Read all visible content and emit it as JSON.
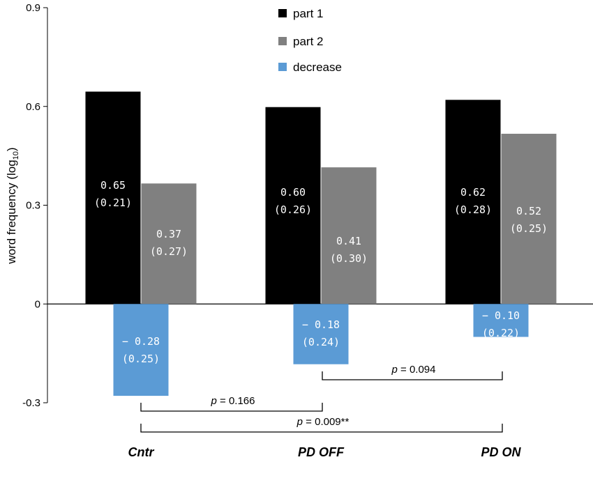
{
  "chart_data": {
    "type": "bar",
    "title": "",
    "xlabel": "",
    "ylabel": "word frequency (log",
    "ylabel_sub": "10",
    "ylabel_end": ")",
    "ylim": [
      -0.3,
      0.9
    ],
    "yticks": [
      {
        "value": -0.3,
        "label": "-0.3"
      },
      {
        "value": 0,
        "label": "0"
      },
      {
        "value": 0.3,
        "label": "0.3"
      },
      {
        "value": 0.6,
        "label": "0.6"
      },
      {
        "value": 0.9,
        "label": "0.9"
      }
    ],
    "categories": [
      "Cntr",
      "PD OFF",
      "PD ON"
    ],
    "legend_position": "top-center",
    "series": [
      {
        "name": "part 1",
        "color": "#000000",
        "values": [
          0.645,
          0.598,
          0.62
        ],
        "labels": [
          [
            "0.65",
            "(0.21)"
          ],
          [
            "0.60",
            "(0.26)"
          ],
          [
            "0.62",
            "(0.28)"
          ]
        ]
      },
      {
        "name": "part 2",
        "color": "#808080",
        "values": [
          0.366,
          0.415,
          0.517
        ],
        "labels": [
          [
            "0.37",
            "(0.27)"
          ],
          [
            "0.41",
            "(0.30)"
          ],
          [
            "0.52",
            "(0.25)"
          ]
        ]
      },
      {
        "name": "decrease",
        "color": "#5b9bd5",
        "values": [
          -0.279,
          -0.183,
          -0.1
        ],
        "labels": [
          [
            "− 0.28",
            "(0.25)"
          ],
          [
            "− 0.18",
            "(0.24)"
          ],
          [
            "− 0.10",
            "(0.22)"
          ]
        ]
      }
    ],
    "annotations": [
      {
        "from": 0,
        "to": 1,
        "p_label": "p",
        "text": " = 0.166"
      },
      {
        "from": 1,
        "to": 2,
        "p_label": "p",
        "text": " = 0.094"
      },
      {
        "from": 0,
        "to": 2,
        "p_label": "p",
        "text": " = 0.009**"
      }
    ]
  }
}
